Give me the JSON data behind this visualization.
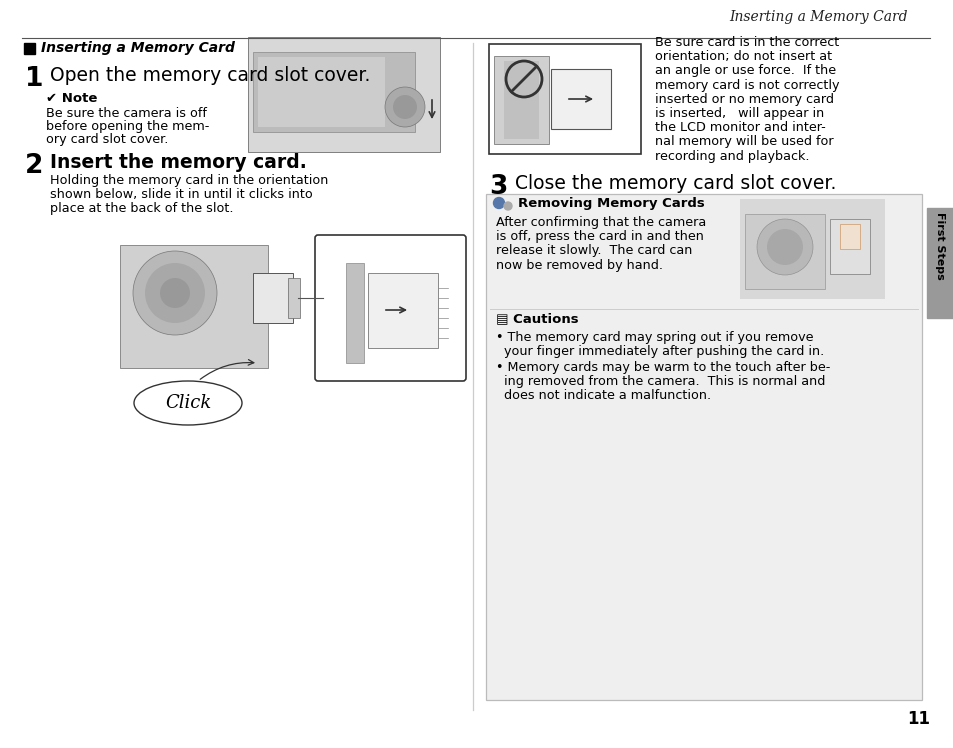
{
  "bg_color": "#ffffff",
  "header_title": "Inserting a Memory Card",
  "section_title": "Inserting a Memory Card",
  "step1_num": "1",
  "step1_title": "Open the memory card slot cover.",
  "note_head": "✔ Note",
  "note_line1": "Be sure the camera is off",
  "note_line2": "before opening the mem-",
  "note_line3": "ory card slot cover.",
  "step2_num": "2",
  "step2_title": "Insert the memory card.",
  "step2_line1": "Holding the memory card in the orientation",
  "step2_line2": "shown below, slide it in until it clicks into",
  "step2_line3": "place at the back of the slot.",
  "step2_click": "Click",
  "right_line1": "Be sure card is in the correct",
  "right_line2": "orientation; do not insert at",
  "right_line3": "an angle or use force.  If the",
  "right_line4": "memory card is not correctly",
  "right_line5": "inserted or no memory card",
  "right_line6": "is inserted,   will appear in",
  "right_line7": "the LCD monitor and inter-",
  "right_line8": "nal memory will be used for",
  "right_line9": "recording and playback.",
  "step3_num": "3",
  "step3_title": "Close the memory card slot cover.",
  "removing_title": "Removing Memory Cards",
  "rem_line1": "After confirming that the camera",
  "rem_line2": "is off, press the card in and then",
  "rem_line3": "release it slowly.  The card can",
  "rem_line4": "now be removed by hand.",
  "cautions_title": "▤ Cautions",
  "caut1a": "• The memory card may spring out if you remove",
  "caut1b": "  your finger immediately after pushing the card in.",
  "caut2a": "• Memory cards may be warm to the touch after be-",
  "caut2b": "  ing removed from the camera.  This is normal and",
  "caut2c": "  does not indicate a malfunction.",
  "sidebar_text": "First Steps",
  "sidebar_bg": "#999999",
  "page_number": "11",
  "box_bg": "#efefef",
  "box_border": "#bbbbbb",
  "divider_color": "#aaaaaa",
  "header_color": "#555555"
}
